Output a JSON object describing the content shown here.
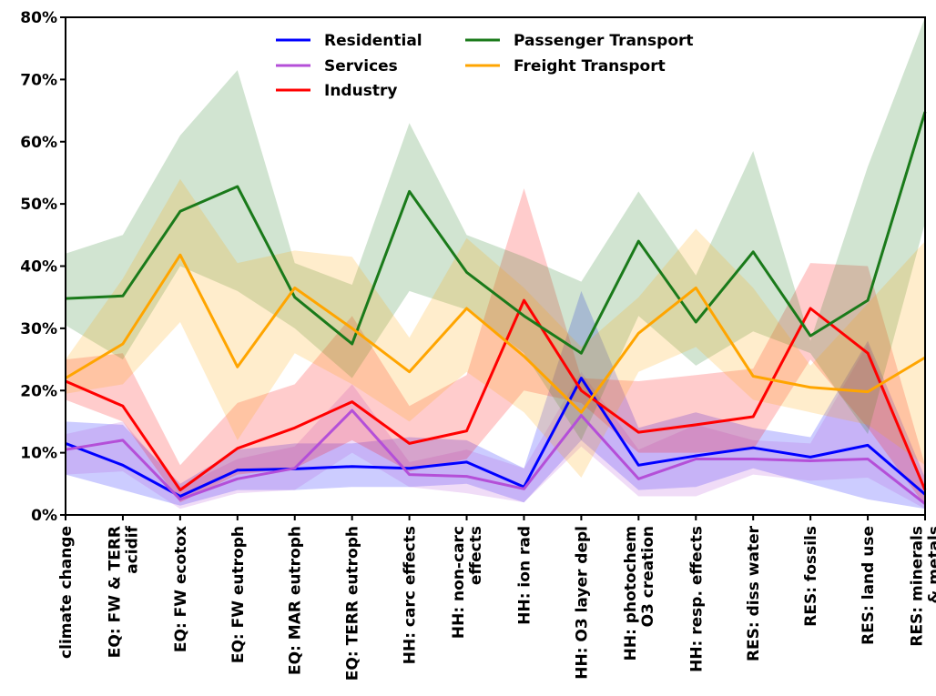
{
  "chart_data": {
    "type": "line",
    "title": "",
    "xlabel": "",
    "ylabel": "",
    "ylim": [
      0,
      80
    ],
    "y_ticks": [
      "0%",
      "10%",
      "20%",
      "30%",
      "40%",
      "50%",
      "60%",
      "70%",
      "80%"
    ],
    "grid": false,
    "legend_placement": "top-center",
    "categories": [
      [
        "climate change"
      ],
      [
        "EQ: FW & TERR",
        "acidif"
      ],
      [
        "EQ: FW ecotox"
      ],
      [
        "EQ: FW eutroph"
      ],
      [
        "EQ: MAR eutroph"
      ],
      [
        "EQ: TERR eutroph"
      ],
      [
        "HH: carc effects"
      ],
      [
        "HH: non-carc",
        "effects"
      ],
      [
        "HH: ion rad"
      ],
      [
        "HH: O3 layer depl"
      ],
      [
        "HH: photochem",
        "O3 creation"
      ],
      [
        "HH: resp. effects"
      ],
      [
        "RES: diss water"
      ],
      [
        "RES: fossils"
      ],
      [
        "RES: land use"
      ],
      [
        "RES: minerals",
        "& metals"
      ]
    ],
    "series": [
      {
        "name": "Residential",
        "color": "#0000ff",
        "values": [
          11.5,
          8.0,
          3.0,
          7.2,
          7.4,
          7.8,
          7.5,
          8.5,
          4.5,
          22.0,
          8.0,
          9.5,
          10.8,
          9.3,
          11.2,
          3.3
        ],
        "lower": [
          6.5,
          4.0,
          1.5,
          4.0,
          4.0,
          4.5,
          4.5,
          5.0,
          2.0,
          12.0,
          4.0,
          4.5,
          7.5,
          5.0,
          2.5,
          1.0
        ],
        "upper": [
          15.0,
          14.5,
          5.0,
          10.5,
          11.5,
          11.5,
          12.5,
          12.0,
          7.5,
          36.0,
          14.0,
          16.5,
          14.0,
          12.5,
          28.0,
          6.0
        ]
      },
      {
        "name": "Services",
        "color": "#b44fd8",
        "values": [
          10.5,
          12.0,
          2.5,
          5.8,
          7.5,
          16.8,
          6.5,
          6.2,
          4.2,
          16.0,
          5.8,
          9.0,
          9.0,
          8.7,
          9.0,
          1.8
        ],
        "lower": [
          6.5,
          7.0,
          1.0,
          3.5,
          4.0,
          10.0,
          4.5,
          3.5,
          2.0,
          11.0,
          3.0,
          3.0,
          6.5,
          5.5,
          6.0,
          1.0
        ],
        "upper": [
          13.0,
          15.0,
          4.5,
          9.0,
          11.0,
          21.0,
          8.5,
          10.5,
          7.5,
          23.0,
          10.5,
          14.5,
          12.0,
          11.5,
          27.5,
          3.5
        ]
      },
      {
        "name": "Industry",
        "color": "#ff0000",
        "values": [
          21.5,
          17.5,
          4.0,
          10.7,
          14.0,
          18.2,
          11.5,
          13.5,
          34.5,
          20.0,
          13.3,
          14.5,
          15.8,
          33.2,
          26.0,
          4.0
        ],
        "lower": [
          18.5,
          15.0,
          2.0,
          6.5,
          7.5,
          12.0,
          7.0,
          9.0,
          20.0,
          18.0,
          10.0,
          10.0,
          10.5,
          25.0,
          14.0,
          1.5
        ],
        "upper": [
          25.0,
          26.0,
          8.0,
          18.0,
          21.0,
          32.0,
          17.5,
          22.5,
          52.5,
          22.0,
          21.5,
          22.5,
          23.5,
          40.5,
          40.0,
          8.0
        ]
      },
      {
        "name": "Passenger Transport",
        "color": "#1a7a1a",
        "values": [
          34.8,
          35.2,
          48.8,
          52.8,
          35.0,
          27.5,
          52.0,
          39.0,
          32.0,
          26.0,
          44.0,
          31.0,
          42.3,
          28.8,
          34.5,
          64.8
        ],
        "lower": [
          30.5,
          25.0,
          40.0,
          36.0,
          30.0,
          22.0,
          36.0,
          33.0,
          26.0,
          12.0,
          32.0,
          24.0,
          29.5,
          26.0,
          13.0,
          47.0
        ],
        "upper": [
          42.0,
          45.0,
          61.0,
          71.5,
          40.5,
          37.0,
          63.0,
          45.0,
          41.5,
          37.5,
          52.0,
          38.5,
          58.5,
          28.0,
          56.0,
          80.0
        ]
      },
      {
        "name": "Freight Transport",
        "color": "#ffa500",
        "values": [
          22.0,
          27.5,
          41.8,
          23.8,
          36.5,
          30.0,
          23.0,
          33.2,
          25.5,
          16.5,
          29.2,
          36.5,
          22.3,
          20.5,
          19.8,
          25.3
        ],
        "lower": [
          19.5,
          21.0,
          31.0,
          12.0,
          26.0,
          21.0,
          15.0,
          23.0,
          16.5,
          6.0,
          23.0,
          27.0,
          18.5,
          16.5,
          14.5,
          8.0
        ],
        "upper": [
          25.0,
          38.0,
          54.0,
          40.5,
          42.5,
          41.5,
          28.5,
          44.5,
          36.5,
          27.0,
          35.0,
          46.0,
          36.5,
          24.0,
          34.0,
          44.0
        ]
      }
    ]
  }
}
